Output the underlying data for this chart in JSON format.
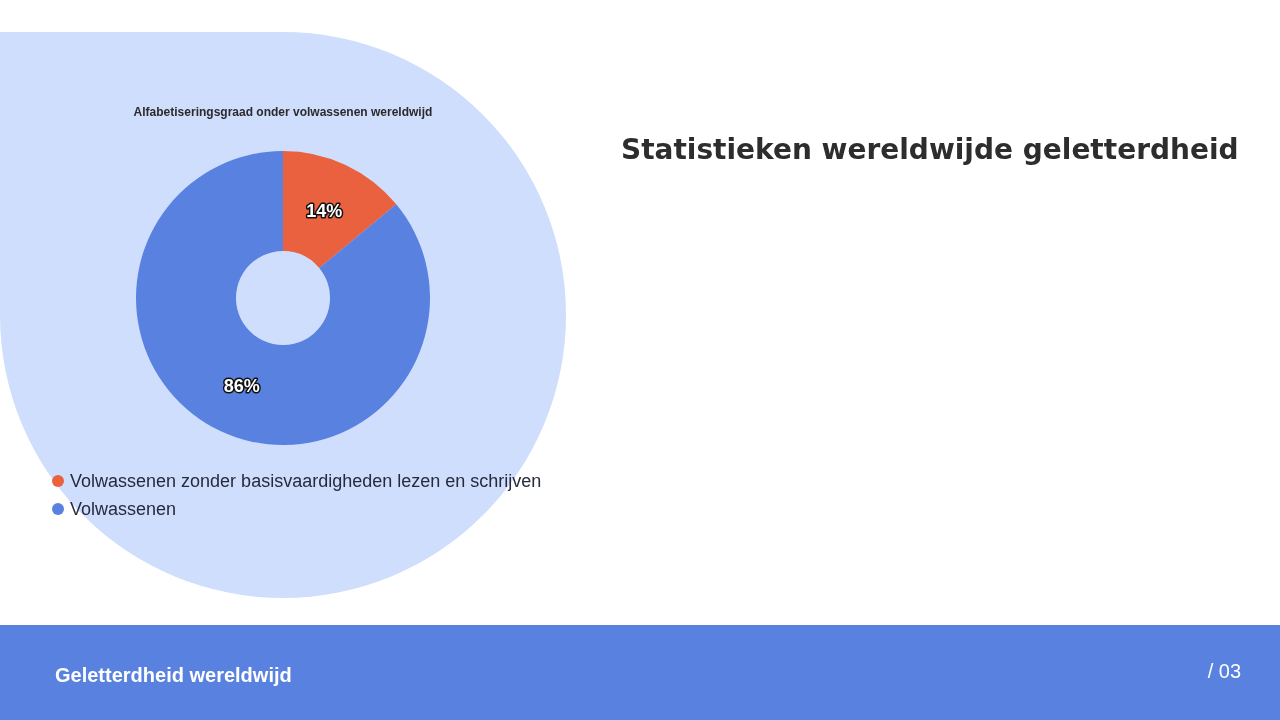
{
  "chart_data": {
    "type": "donut",
    "title": "Alfabetiseringsgraad onder volwassenen wereldwijd",
    "categories": [
      "Volwassenen zonder basisvaardigheden lezen en schrijven",
      "Volwassenen"
    ],
    "values": [
      14,
      86
    ],
    "colors": [
      "#e9613f",
      "#5881e0"
    ],
    "value_labels": [
      "14%",
      "86%"
    ],
    "legend": "bottom",
    "annotations": [
      "Statistieken wereldwijde geletterdheid",
      "Geletterdheid wereldwijd",
      "/ 03"
    ]
  }
}
